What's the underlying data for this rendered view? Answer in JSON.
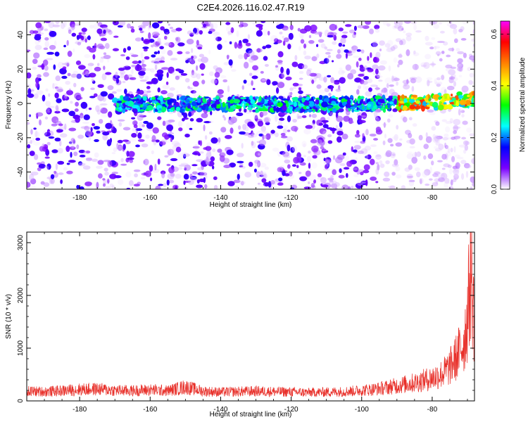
{
  "figure": {
    "title": "C2E4.2026.116.02.47.R19"
  },
  "chart_data": [
    {
      "type": "heatmap",
      "xlabel": "Height of straight line (km)",
      "ylabel": "Frequency (Hz)",
      "xlim": [
        -195,
        -68
      ],
      "ylim": [
        -50,
        48
      ],
      "xticks": [
        -180,
        -160,
        -140,
        -120,
        -100,
        -80
      ],
      "yticks": [
        -40,
        -20,
        0,
        20,
        40
      ],
      "colorbar": {
        "label": "Normalized spectral amplitude",
        "range": [
          0,
          0.65
        ],
        "ticks": [
          0.0,
          0.2,
          0.4,
          0.6
        ],
        "colormap": [
          "#ffffff",
          "#7a00ff",
          "#0000ff",
          "#00ffff",
          "#00ff00",
          "#ffff00",
          "#ff8000",
          "#ff0000",
          "#ff00ff"
        ]
      },
      "features": {
        "signal_band_frequency_hz": [
          -3,
          2
        ],
        "signal_band_x_range_km": [
          -170,
          -68
        ],
        "peak_amplitude_region_km": [
          -90,
          -68
        ],
        "peak_amplitude": 0.55
      }
    },
    {
      "type": "line",
      "xlabel": "Height of straight line (km)",
      "ylabel": "SNR (10 * v/v)",
      "xlim": [
        -195,
        -68
      ],
      "ylim": [
        0,
        3200
      ],
      "xticks": [
        -180,
        -160,
        -140,
        -120,
        -100,
        -80
      ],
      "yticks": [
        0,
        1000,
        2000,
        3000
      ],
      "series": [
        {
          "color": "#e8302a",
          "x": [
            -195,
            -190,
            -185,
            -180,
            -175,
            -170,
            -165,
            -160,
            -155,
            -150,
            -145,
            -140,
            -135,
            -130,
            -125,
            -120,
            -115,
            -110,
            -105,
            -100,
            -95,
            -90,
            -85,
            -80,
            -77,
            -75,
            -73,
            -71,
            -70,
            -69,
            -68
          ],
          "y": [
            230,
            220,
            240,
            270,
            280,
            250,
            240,
            260,
            240,
            330,
            230,
            210,
            220,
            230,
            220,
            210,
            200,
            210,
            220,
            250,
            290,
            360,
            430,
            540,
            650,
            800,
            1050,
            1400,
            2000,
            3200,
            1800
          ]
        }
      ]
    }
  ]
}
